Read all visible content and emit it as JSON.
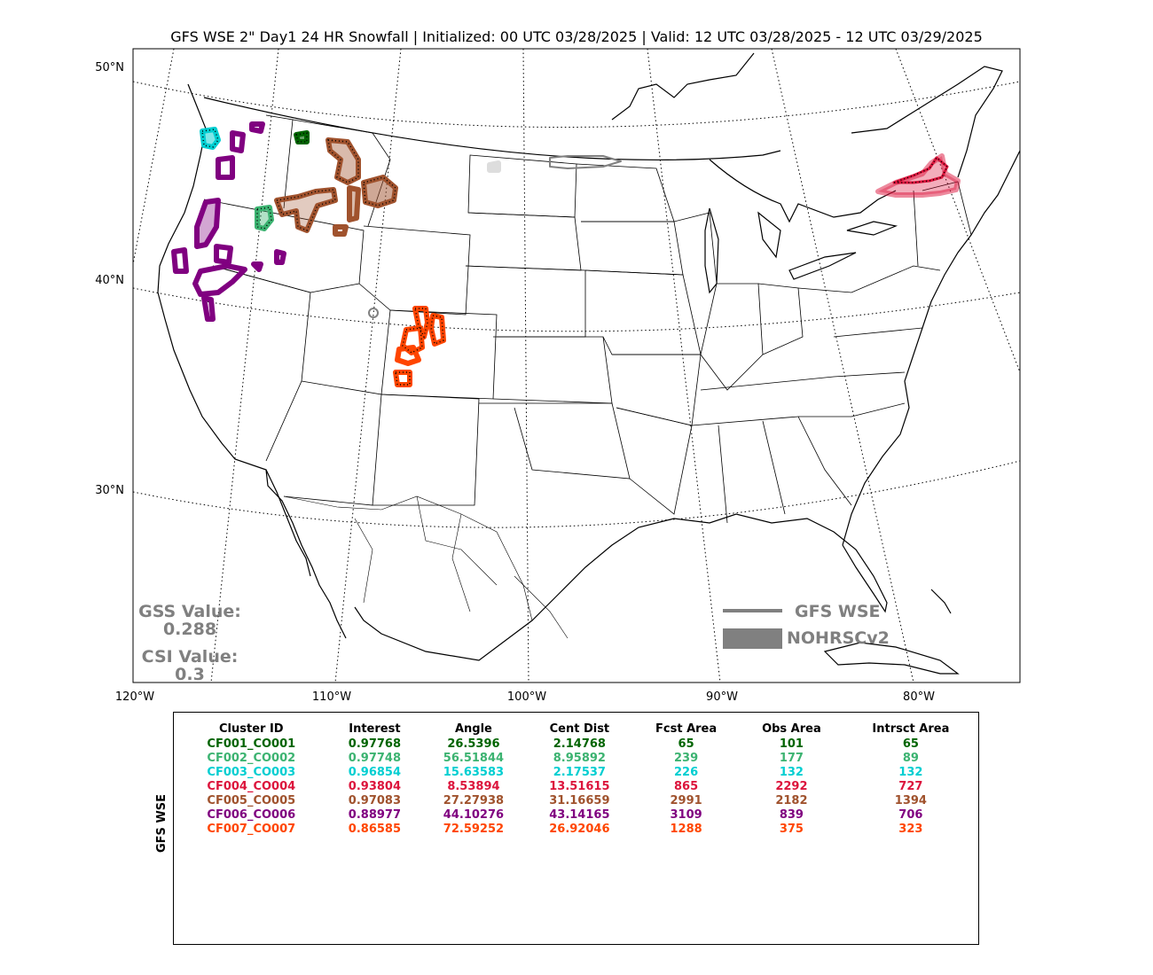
{
  "title": "GFS WSE 2\" Day1 24 HR Snowfall | Initialized: 00 UTC 03/28/2025 | Valid: 12 UTC 03/28/2025 - 12 UTC 03/29/2025",
  "map": {
    "lat_labels": [
      "50°N",
      "40°N",
      "30°N"
    ],
    "lon_labels": [
      "120°W",
      "110°W",
      "100°W",
      "90°W",
      "80°W"
    ]
  },
  "stats": {
    "gss_label": "GSS Value:",
    "gss_value": "0.288",
    "csi_label": "CSI Value:",
    "csi_value": "0.3"
  },
  "legend": {
    "forecast_label": "GFS WSE",
    "observed_label": "NOHRSCv2",
    "color": "#808080"
  },
  "table": {
    "side_label": "GFS WSE",
    "headers": [
      "Cluster ID",
      "Interest",
      "Angle",
      "Cent Dist",
      "Fcst Area",
      "Obs Area",
      "Intrsct Area"
    ],
    "rows": [
      {
        "color": "#006400",
        "cells": [
          "CF001_CO001",
          "0.97768",
          "26.5396",
          "2.14768",
          "65",
          "101",
          "65"
        ]
      },
      {
        "color": "#3cb371",
        "cells": [
          "CF002_CO002",
          "0.97748",
          "56.51844",
          "8.95892",
          "239",
          "177",
          "89"
        ]
      },
      {
        "color": "#00ced1",
        "cells": [
          "CF003_CO003",
          "0.96854",
          "15.63583",
          "2.17537",
          "226",
          "132",
          "132"
        ]
      },
      {
        "color": "#dc143c",
        "cells": [
          "CF004_CO004",
          "0.93804",
          "8.53894",
          "13.51615",
          "865",
          "2292",
          "727"
        ]
      },
      {
        "color": "#a0522d",
        "cells": [
          "CF005_CO005",
          "0.97083",
          "27.27938",
          "31.16659",
          "2991",
          "2182",
          "1394"
        ]
      },
      {
        "color": "#800080",
        "cells": [
          "CF006_CO006",
          "0.88977",
          "44.10276",
          "43.14165",
          "3109",
          "839",
          "706"
        ]
      },
      {
        "color": "#ff4500",
        "cells": [
          "CF007_CO007",
          "0.86585",
          "72.59252",
          "26.92046",
          "1288",
          "375",
          "323"
        ]
      }
    ]
  }
}
